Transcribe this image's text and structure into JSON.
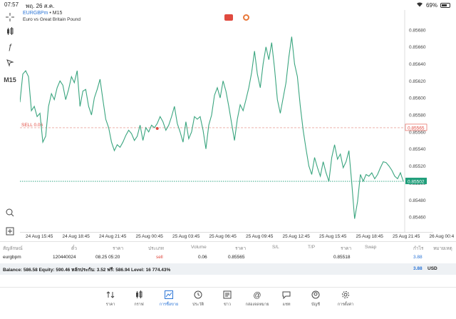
{
  "status": {
    "time": "07:57",
    "date": "พฤ. 26 ส.ค.",
    "battery": "69%",
    "battery_level": 0.69
  },
  "chart": {
    "symbol": "EURGBPm",
    "timeframe": "M15",
    "header_suffix": " • M15",
    "description": "Euro vs Great Britain Pound",
    "sell_label": "SELL 0.06"
  },
  "toolbar": {
    "timeframe_label": "M15"
  },
  "chart_data": {
    "type": "line",
    "ylim": [
      0.85445,
      0.857
    ],
    "y_ticks": [
      "0.85680",
      "0.85660",
      "0.85640",
      "0.85620",
      "0.85600",
      "0.85580",
      "0.85560",
      "0.85540",
      "0.85520",
      "0.85500",
      "0.85480",
      "0.85460"
    ],
    "y_tick_values": [
      0.8568,
      0.8566,
      0.8564,
      0.8562,
      0.856,
      0.8558,
      0.8556,
      0.8554,
      0.8552,
      0.855,
      0.8548,
      0.8546
    ],
    "x_ticks": [
      "24 Aug 15:45",
      "24 Aug 18:45",
      "24 Aug 21:45",
      "25 Aug 00:45",
      "25 Aug 03:45",
      "25 Aug 06:45",
      "25 Aug 09:45",
      "25 Aug 12:45",
      "25 Aug 15:45",
      "25 Aug 18:45",
      "25 Aug 21:45",
      "26 Aug 00:4"
    ],
    "sell_price": 0.85565,
    "sell_price_label": "0.85565",
    "current_price": 0.85502,
    "current_price_label": "0.85502",
    "values": [
      0.85595,
      0.85628,
      0.85632,
      0.85625,
      0.85585,
      0.8559,
      0.85578,
      0.85582,
      0.85548,
      0.85555,
      0.8559,
      0.85605,
      0.85598,
      0.85612,
      0.8562,
      0.85615,
      0.85598,
      0.8561,
      0.85625,
      0.85618,
      0.85632,
      0.8559,
      0.85608,
      0.8561,
      0.8559,
      0.8558,
      0.856,
      0.8561,
      0.85622,
      0.85598,
      0.85575,
      0.85565,
      0.85548,
      0.85538,
      0.85545,
      0.85542,
      0.85548,
      0.85556,
      0.85562,
      0.85558,
      0.8555,
      0.85555,
      0.85568,
      0.8555,
      0.85565,
      0.8556,
      0.85568,
      0.85565,
      0.8557,
      0.85578,
      0.85572,
      0.85562,
      0.85568,
      0.85578,
      0.8559,
      0.8557,
      0.8556,
      0.85548,
      0.85572,
      0.85552,
      0.8556,
      0.85578,
      0.85575,
      0.85578,
      0.85562,
      0.8554,
      0.85568,
      0.8558,
      0.85603,
      0.85612,
      0.856,
      0.8562,
      0.85608,
      0.8559,
      0.8557,
      0.8555,
      0.85575,
      0.85592,
      0.85585,
      0.85598,
      0.85612,
      0.8563,
      0.85655,
      0.85628,
      0.85612,
      0.8564,
      0.8566,
      0.85645,
      0.85665,
      0.85635,
      0.85598,
      0.85582,
      0.856,
      0.85618,
      0.85648,
      0.85672,
      0.8564,
      0.85625,
      0.8559,
      0.85562,
      0.8554,
      0.8552,
      0.8551,
      0.8553,
      0.85518,
      0.85508,
      0.85525,
      0.85512,
      0.85502,
      0.8553,
      0.85545,
      0.85528,
      0.85534,
      0.85518,
      0.85525,
      0.85538,
      0.855,
      0.85458,
      0.85478,
      0.8551,
      0.85502,
      0.8551,
      0.85508,
      0.85512,
      0.85505,
      0.8551,
      0.85518,
      0.85525,
      0.85524,
      0.8552,
      0.85515,
      0.85508,
      0.85505,
      0.85512,
      0.85502
    ]
  },
  "table": {
    "headers": {
      "symbol": "สัญลักษณ์",
      "ticket": "ตั๋ว",
      "price": "ราคา",
      "type": "ประเภท",
      "volume": "Volume",
      "open_price": "ราคา",
      "sl": "S/L",
      "tp": "T/P",
      "current_price": "ราคา",
      "swap": "Swap",
      "profit": "กำไร",
      "comment": "หมายเหตุ"
    },
    "row": {
      "symbol": "eurgbpm",
      "ticket": "120440024",
      "time": "08.25 05:20",
      "type": "sell",
      "volume": "0.06",
      "open_price": "0.85565",
      "current_price": "0.85518",
      "profit": "3.88"
    }
  },
  "balance": {
    "text": "Balance: 586.58 Equity: 590.46 หลักประกัน: 3.52 ฟรี: 586.94 Level: 16 774.43%",
    "profit": "3.88",
    "currency": "USD"
  },
  "nav": [
    {
      "label": "ราคา",
      "icon": "quotes-icon",
      "active": false
    },
    {
      "label": "กราฟ",
      "icon": "chart-candles-icon",
      "active": false
    },
    {
      "label": "การซื้อขาย",
      "icon": "trade-icon",
      "active": true
    },
    {
      "label": "ประวัติ",
      "icon": "history-icon",
      "active": false
    },
    {
      "label": "ข่าว",
      "icon": "news-icon",
      "active": false
    },
    {
      "label": "กล่องจดหมาย",
      "icon": "mailbox-icon",
      "active": false
    },
    {
      "label": "แชท",
      "icon": "chat-icon",
      "active": false
    },
    {
      "label": "บัญชี",
      "icon": "account-icon",
      "active": false
    },
    {
      "label": "การตั้งค่า",
      "icon": "settings-icon",
      "active": false
    }
  ],
  "colors": {
    "accent": "#2a74d6",
    "line": "#3aa57f",
    "sell": "#e04a3f",
    "current": "#1f9e7a"
  }
}
